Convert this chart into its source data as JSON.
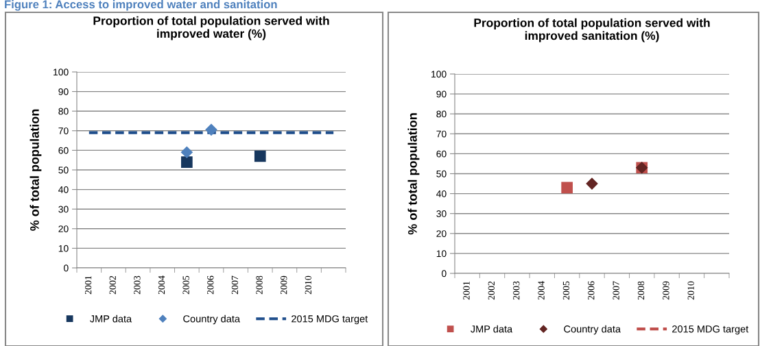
{
  "chart_data": [
    {
      "type": "scatter",
      "title": "Proportion of total population served with\nimproved water (%)",
      "ylabel": "% of total population",
      "annotations": [
        "Figure 1: Access to improved water and sanitation"
      ],
      "categories": [
        "2001",
        "2002",
        "2003",
        "2004",
        "2005",
        "2006",
        "2007",
        "2008",
        "2009",
        "2010",
        null
      ],
      "ylim": [
        0,
        100
      ],
      "yticks": [
        0,
        10,
        20,
        30,
        40,
        50,
        60,
        70,
        80,
        90,
        100
      ],
      "grid": "y",
      "legend": "bottom",
      "series": [
        {
          "name": "JMP data",
          "color": "#17375e",
          "marker": "square",
          "values": [
            null,
            null,
            null,
            null,
            54,
            null,
            null,
            57,
            null,
            null,
            null
          ]
        },
        {
          "name": "Country data",
          "color": "#4f81bd",
          "marker": "diamond",
          "values": [
            null,
            null,
            null,
            null,
            59,
            70.5,
            null,
            null,
            null,
            null,
            null
          ]
        },
        {
          "name": "2015 MDG target",
          "type": "line",
          "line_style": "dashed",
          "color": "#1f4e8c",
          "values": [
            69,
            69,
            69,
            69,
            69,
            69,
            69,
            69,
            69,
            69,
            69
          ]
        }
      ]
    },
    {
      "type": "scatter",
      "title": "Proportion of total population served with\nimproved sanitation (%)",
      "ylabel": "% of total population",
      "categories": [
        "2001",
        "2002",
        "2003",
        "2004",
        "2005",
        "2006",
        "2007",
        "2008",
        "2009",
        "2010",
        null
      ],
      "ylim": [
        0,
        100
      ],
      "yticks": [
        0,
        10,
        20,
        30,
        40,
        50,
        60,
        70,
        80,
        90,
        100
      ],
      "grid": "y",
      "legend": "bottom",
      "series": [
        {
          "name": "JMP data",
          "color": "#c0504d",
          "marker": "square",
          "values": [
            null,
            null,
            null,
            null,
            43,
            null,
            null,
            53,
            null,
            null,
            null
          ]
        },
        {
          "name": "Country data",
          "color": "#632523",
          "marker": "diamond",
          "values": [
            null,
            null,
            null,
            null,
            null,
            45,
            null,
            53,
            null,
            null,
            null
          ]
        },
        {
          "name": "2015 MDG target",
          "type": "line",
          "line_style": "dashed",
          "color": "#c0504d",
          "values": [
            null,
            null,
            null,
            null,
            null,
            null,
            null,
            null,
            null,
            null,
            null
          ]
        }
      ]
    }
  ]
}
